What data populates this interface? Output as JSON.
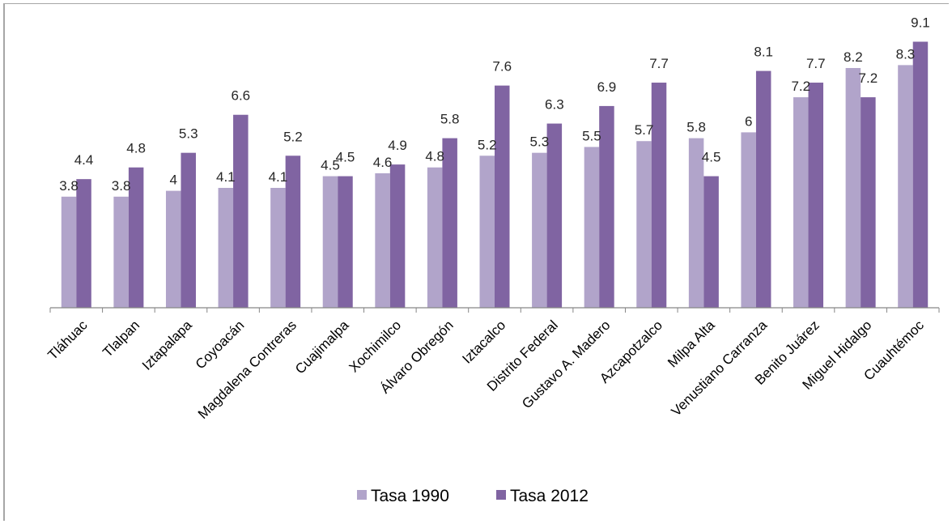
{
  "chart_data": {
    "type": "bar",
    "title": "",
    "xlabel": "",
    "ylabel": "",
    "ylim": [
      0,
      10
    ],
    "grid": false,
    "legend_position": "bottom",
    "categories": [
      "Tláhuac",
      "Tlalpan",
      "Iztapalapa",
      "Coyoacán",
      "Magdalena Contreras",
      "Cuajimalpa",
      "Xochimilco",
      "Álvaro Obregón",
      "Iztacalco",
      "Distrito Federal",
      "Gustavo A. Madero",
      "Azcapotzalco",
      "Milpa Alta",
      "Venustiano Carranza",
      "Benito Juárez",
      "Miguel Hidalgo",
      "Cuauhtémoc"
    ],
    "series": [
      {
        "name": "Tasa 1990",
        "color": "#b1a4ca",
        "values": [
          3.8,
          3.8,
          4,
          4.1,
          4.1,
          4.5,
          4.6,
          4.8,
          5.2,
          5.3,
          5.5,
          5.7,
          5.8,
          6,
          7.2,
          8.2,
          8.3
        ]
      },
      {
        "name": "Tasa 2012",
        "color": "#8064a2",
        "values": [
          4.4,
          4.8,
          5.3,
          6.6,
          5.2,
          4.5,
          4.9,
          5.8,
          7.6,
          6.3,
          6.9,
          7.7,
          4.5,
          8.1,
          7.7,
          7.2,
          9.1
        ]
      }
    ]
  }
}
